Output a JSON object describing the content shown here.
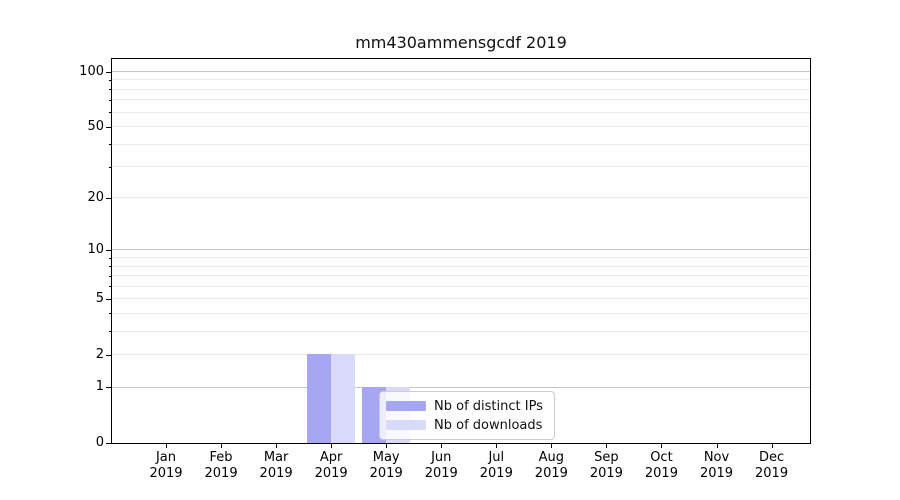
{
  "chart_data": {
    "type": "bar",
    "title": "mm430ammensgcdf 2019",
    "x": {
      "categories": [
        "Jan",
        "Feb",
        "Mar",
        "Apr",
        "May",
        "Jun",
        "Jul",
        "Aug",
        "Sep",
        "Oct",
        "Nov",
        "Dec"
      ],
      "year_label": "2019"
    },
    "series": [
      {
        "name": "Nb of distinct IPs",
        "color": "#a6a6f2",
        "values": [
          0,
          0,
          0,
          2,
          1,
          0,
          0,
          0,
          0,
          0,
          0,
          0
        ]
      },
      {
        "name": "Nb of downloads",
        "color": "#d9d9fa",
        "values": [
          0,
          0,
          0,
          2,
          1,
          0,
          0,
          0,
          0,
          0,
          0,
          0
        ]
      }
    ],
    "yscale": "log1p",
    "ylim": [
      0,
      117
    ],
    "yticks": [
      0,
      1,
      2,
      5,
      10,
      20,
      50,
      100
    ],
    "major_gridlines": [
      1,
      10,
      100
    ],
    "minor_gridlines": [
      2,
      3,
      4,
      5,
      6,
      7,
      8,
      9,
      20,
      30,
      40,
      50,
      60,
      70,
      80,
      90
    ],
    "grid": true,
    "legend": {
      "position": "inside-bottom-center",
      "entries": [
        "Nb of distinct IPs",
        "Nb of downloads"
      ]
    }
  },
  "colors": {
    "spine": "#000000",
    "gridline_minor": "#ebebeb",
    "gridline_major": "#c7c7c7",
    "legend_border": "#cccccc",
    "legend_background": "rgba(255,255,255,0.8)",
    "bar_distinct_ips": "#a6a6f2",
    "bar_downloads": "#d9d9fa"
  }
}
